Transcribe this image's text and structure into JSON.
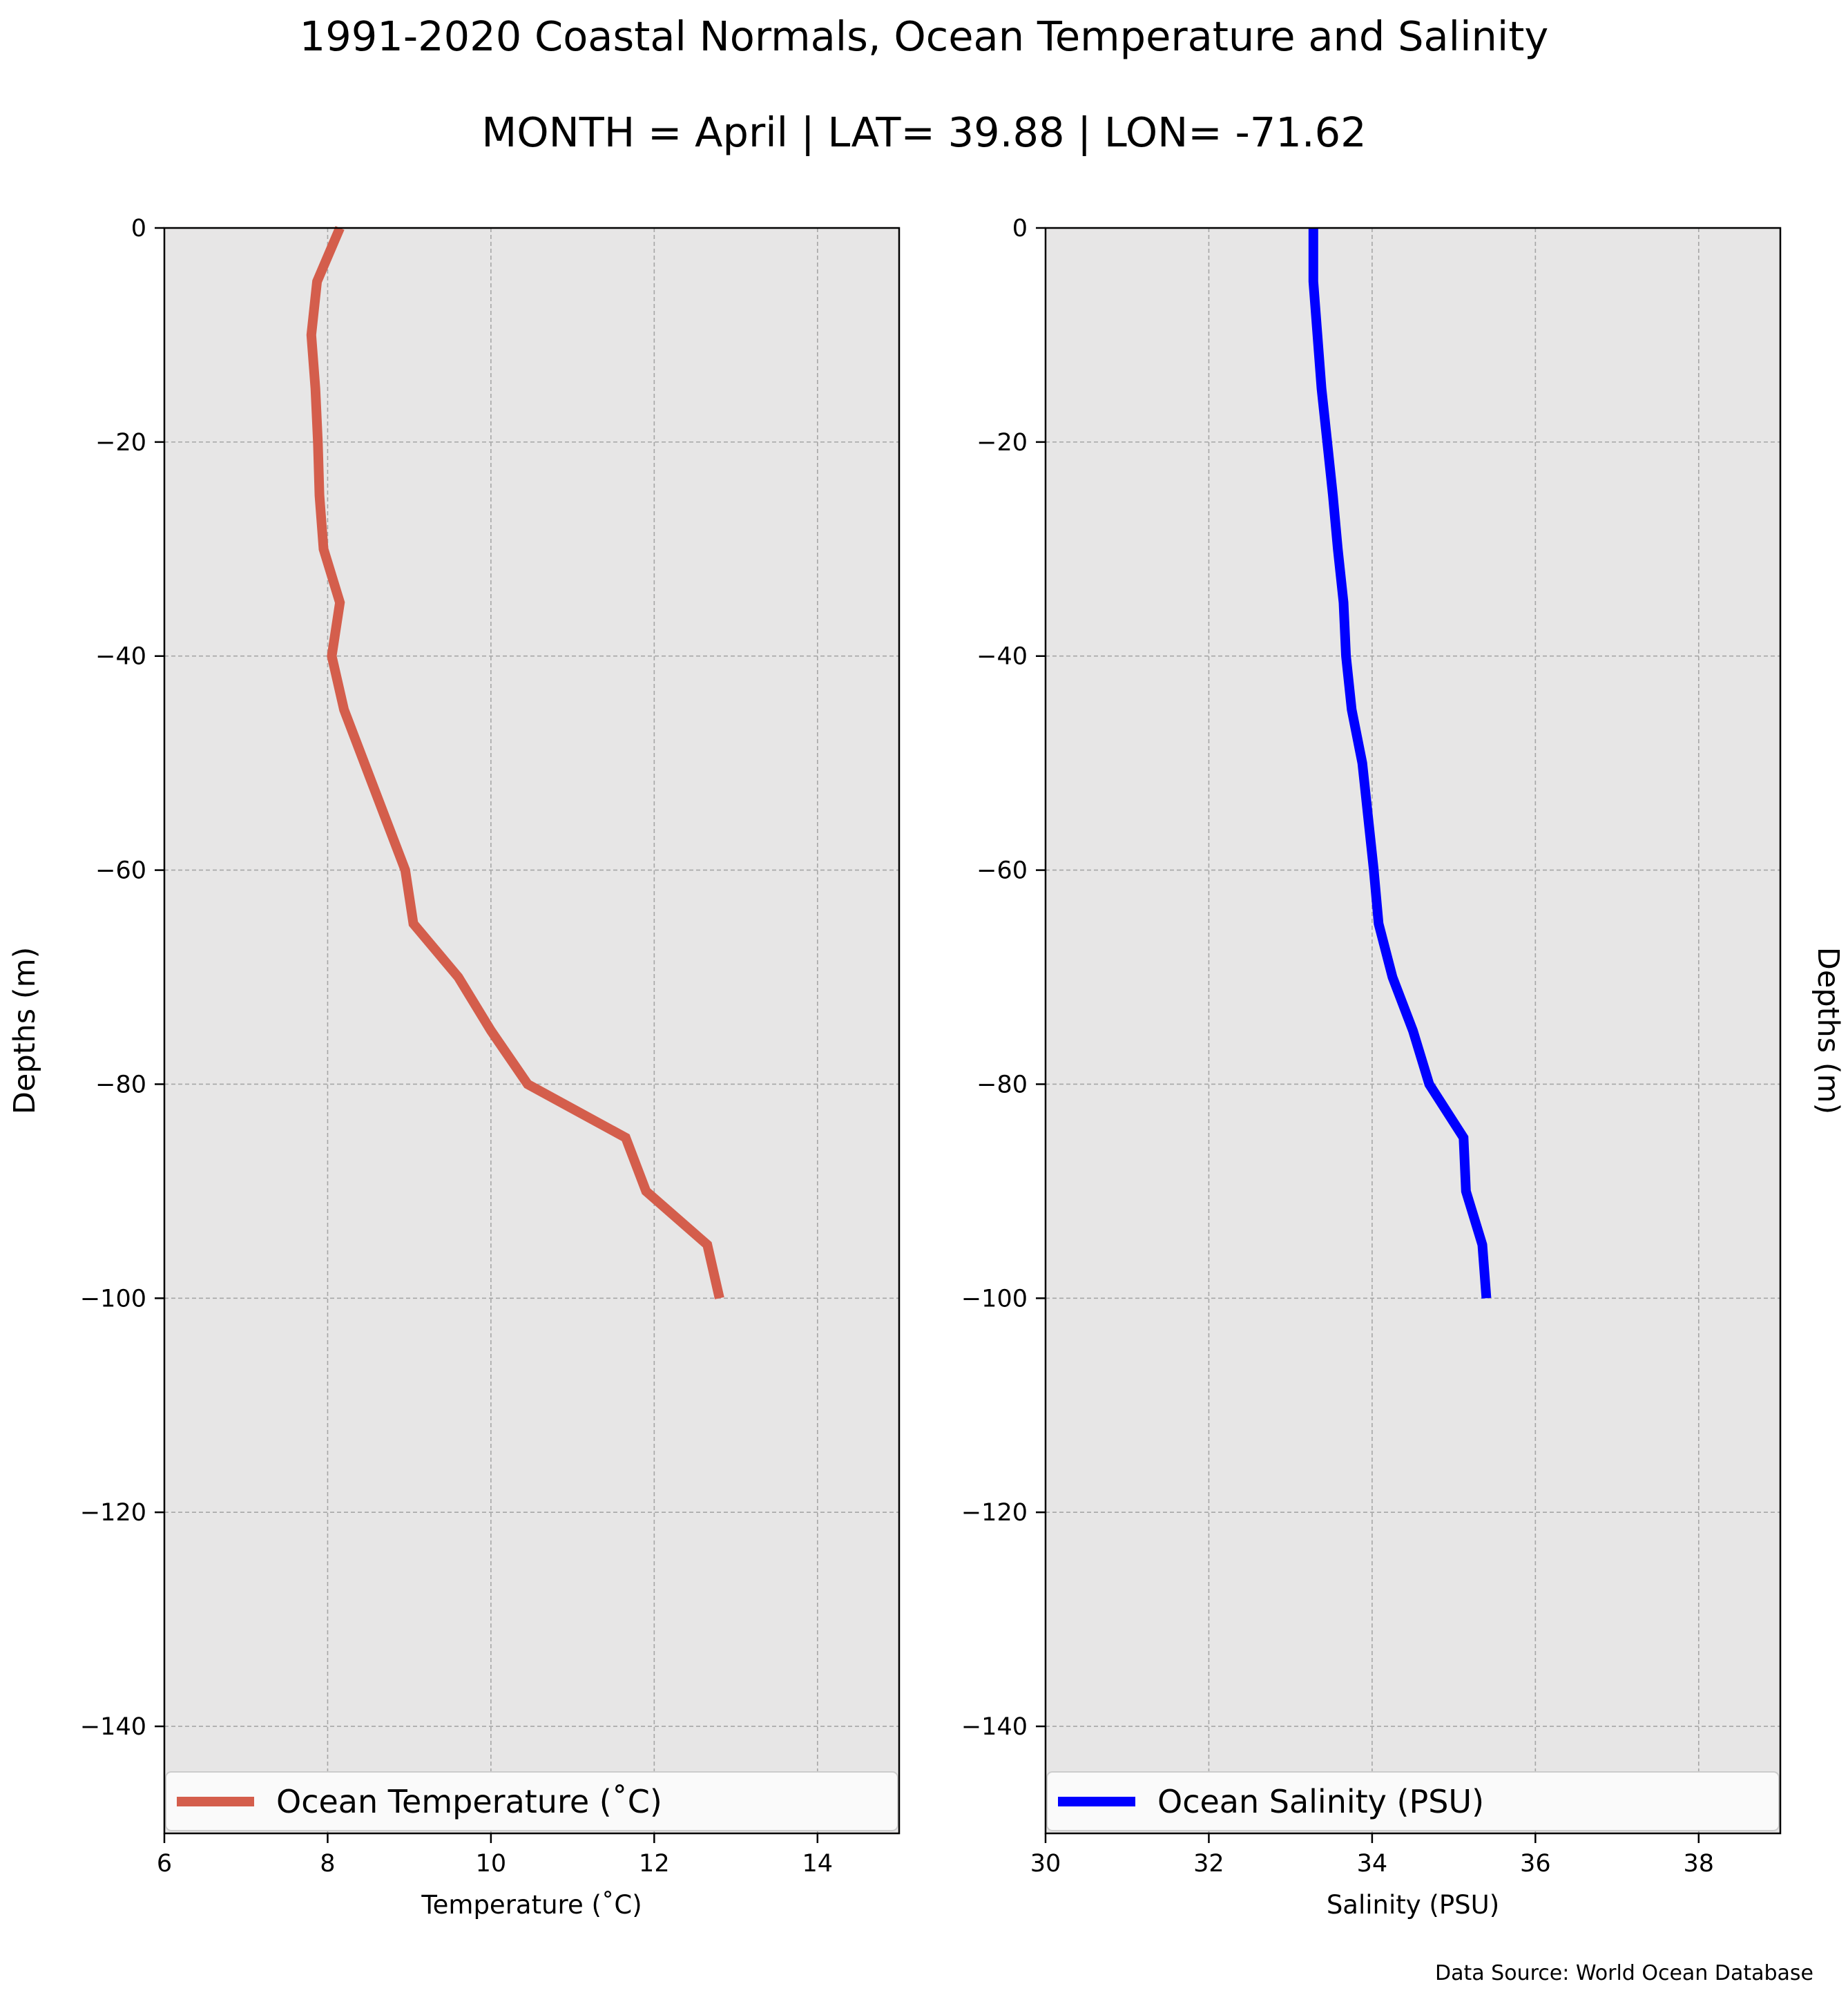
{
  "title": "1991-2020 Coastal Normals, Ocean Temperature and Salinity",
  "subtitle": "MONTH = April | LAT= 39.88 | LON= -71.62",
  "source": "Data Source: World Ocean Database",
  "chart_data": [
    {
      "type": "line",
      "xlabel": "Temperature (˚C)",
      "ylabel": "Depths (m)",
      "xlim": [
        6,
        15
      ],
      "ylim": [
        -150,
        0
      ],
      "xticks": [
        6,
        8,
        10,
        12,
        14
      ],
      "yticks": [
        0,
        -20,
        -40,
        -60,
        -80,
        -100,
        -120,
        -140
      ],
      "grid": true,
      "legend_position": "bottom",
      "series": [
        {
          "name": "Ocean Temperature (˚C)",
          "color": "#d45e4c",
          "x": [
            8.15,
            7.87,
            7.8,
            7.85,
            7.88,
            7.9,
            7.95,
            8.15,
            8.05,
            8.2,
            8.55,
            8.95,
            9.05,
            9.6,
            10.0,
            10.45,
            11.65,
            11.9,
            12.65,
            12.8
          ],
          "y": [
            0,
            -5,
            -10,
            -15,
            -20,
            -25,
            -30,
            -35,
            -40,
            -45,
            -52,
            -60,
            -65,
            -70,
            -75,
            -80,
            -85,
            -90,
            -95,
            -100
          ]
        }
      ]
    },
    {
      "type": "line",
      "xlabel": "Salinity (PSU)",
      "ylabel": "Depths (m)",
      "xlim": [
        30,
        39
      ],
      "ylim": [
        -150,
        0
      ],
      "xticks": [
        30,
        32,
        34,
        36,
        38
      ],
      "yticks": [
        0,
        -20,
        -40,
        -60,
        -80,
        -100,
        -120,
        -140
      ],
      "grid": true,
      "legend_position": "bottom",
      "series": [
        {
          "name": "Ocean Salinity (PSU)",
          "color": "#0000ff",
          "x": [
            33.28,
            33.28,
            33.33,
            33.38,
            33.45,
            33.52,
            33.58,
            33.65,
            33.68,
            33.75,
            33.88,
            34.02,
            34.08,
            34.25,
            34.5,
            34.7,
            35.12,
            35.15,
            35.35,
            35.4
          ],
          "y": [
            0,
            -5,
            -10,
            -15,
            -20,
            -25,
            -30,
            -35,
            -40,
            -45,
            -50,
            -60,
            -65,
            -70,
            -75,
            -80,
            -85,
            -90,
            -95,
            -100
          ]
        }
      ]
    }
  ]
}
